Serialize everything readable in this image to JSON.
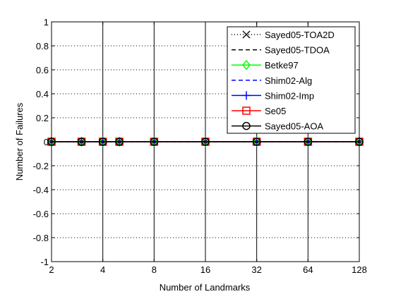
{
  "chart_data": {
    "type": "line",
    "xlabel": "Number of Landmarks",
    "ylabel": "Number of Failures",
    "x_scale": "log2",
    "xlim": [
      2,
      128
    ],
    "ylim": [
      -1,
      1
    ],
    "x_ticks": [
      2,
      4,
      8,
      16,
      32,
      64,
      128
    ],
    "y_ticks": [
      -1,
      -0.8,
      -0.6,
      -0.4,
      -0.2,
      0,
      0.2,
      0.4,
      0.6,
      0.8,
      1
    ],
    "x": [
      2,
      3,
      4,
      5,
      8,
      16,
      32,
      64,
      128
    ],
    "grid": true,
    "legend_position": "top-right",
    "series": [
      {
        "name": "Sayed05-TOA2D",
        "color": "#000000",
        "line": "dotted",
        "marker": "x",
        "values": [
          0,
          0,
          0,
          0,
          0,
          0,
          0,
          0,
          0
        ]
      },
      {
        "name": "Sayed05-TDOA",
        "color": "#000000",
        "line": "dashed",
        "marker": "none",
        "values": [
          0,
          0,
          0,
          0,
          0,
          0,
          0,
          0,
          0
        ]
      },
      {
        "name": "Betke97",
        "color": "#00ff00",
        "line": "solid",
        "marker": "diamond",
        "values": [
          0,
          0,
          0,
          0,
          0,
          0,
          0,
          0,
          0
        ]
      },
      {
        "name": "Shim02-Alg",
        "color": "#0000ff",
        "line": "dashed",
        "marker": "none",
        "values": [
          0,
          0,
          0,
          0,
          0,
          0,
          0,
          0,
          0
        ]
      },
      {
        "name": "Shim02-Imp",
        "color": "#0000ff",
        "line": "solid",
        "marker": "plus",
        "values": [
          0,
          0,
          0,
          0,
          0,
          0,
          0,
          0,
          0
        ]
      },
      {
        "name": "Se05",
        "color": "#ff0000",
        "line": "solid",
        "marker": "square",
        "values": [
          0,
          0,
          0,
          0,
          0,
          0,
          0,
          0,
          0
        ]
      },
      {
        "name": "Sayed05-AOA",
        "color": "#000000",
        "line": "solid",
        "marker": "circle",
        "values": [
          0,
          0,
          0,
          0,
          0,
          0,
          0,
          0,
          0
        ]
      }
    ]
  }
}
